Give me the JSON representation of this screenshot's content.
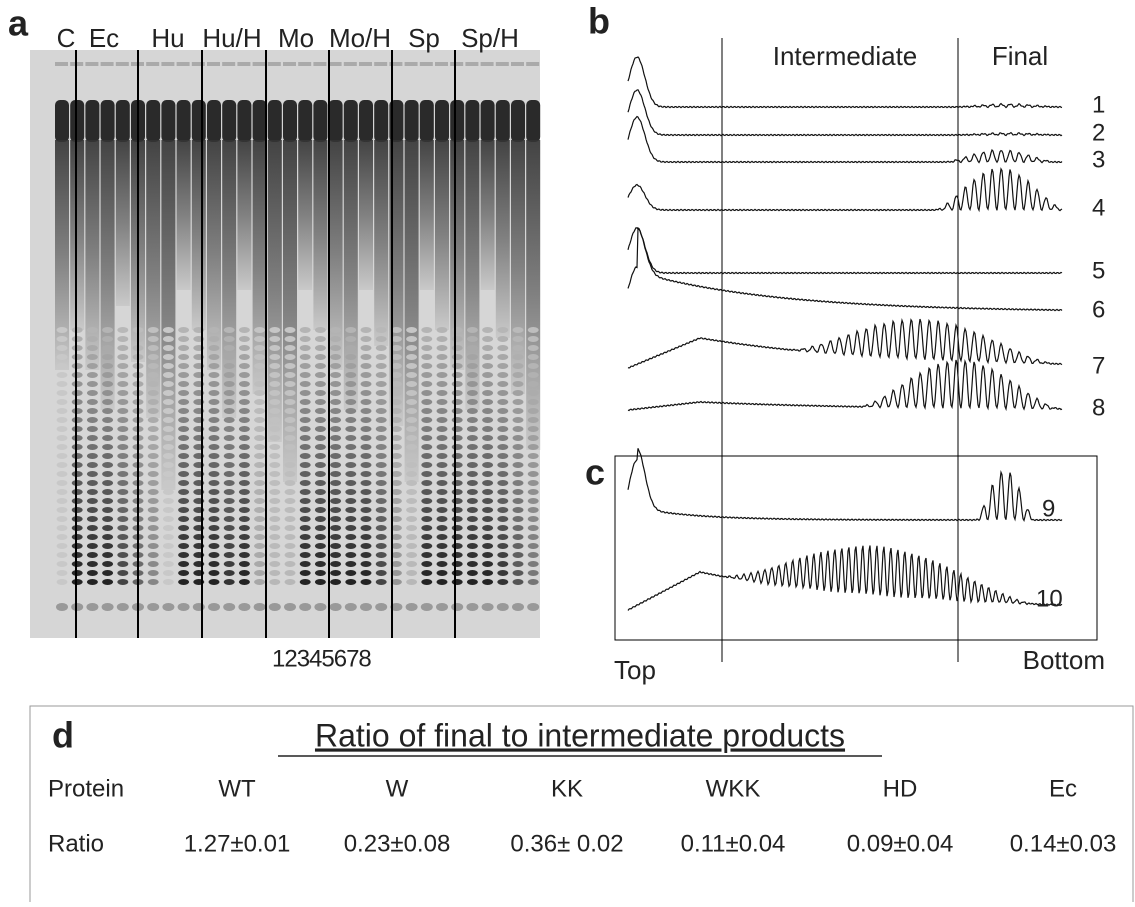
{
  "panels": {
    "a": {
      "label": "a",
      "lanes": [
        "C",
        "Ec",
        "Hu",
        "Hu/H",
        "Mo",
        "Mo/H",
        "Sp",
        "Sp/H"
      ],
      "lane_numbers": "12345678"
    },
    "b": {
      "label": "b",
      "regions": [
        "Intermediate",
        "Final"
      ],
      "traces": [
        "1",
        "2",
        "3",
        "4",
        "5",
        "6",
        "7",
        "8"
      ]
    },
    "c": {
      "label": "c",
      "traces": [
        "9",
        "10"
      ],
      "ends": [
        "Top",
        "Bottom"
      ]
    },
    "d": {
      "label": "d",
      "title": "Ratio of final to intermediate products",
      "table": {
        "rows": [
          [
            "Protein",
            "WT",
            "W",
            "KK",
            "WKK",
            "HD",
            "Ec"
          ],
          [
            "Ratio",
            "1.27±0.01",
            "0.23±0.08",
            "0.36± 0.02",
            "0.11±0.04",
            "0.09±0.04",
            "0.14±0.03"
          ]
        ]
      }
    }
  }
}
